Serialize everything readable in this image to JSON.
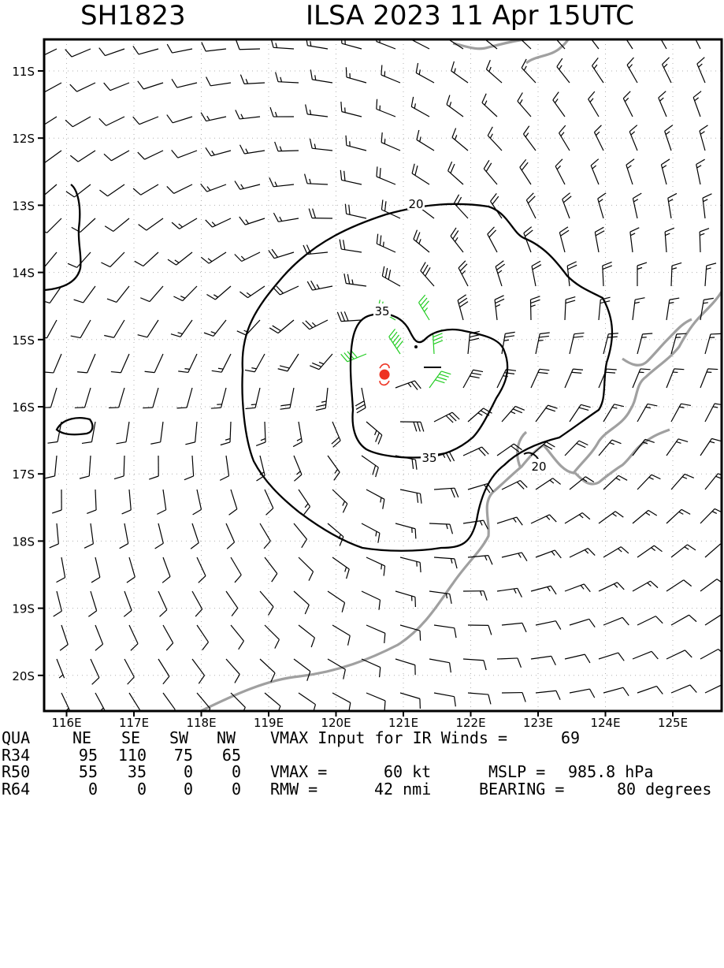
{
  "header": {
    "storm_id": "SH1823",
    "storm_title": "ILSA 2023 11 Apr 15UTC"
  },
  "map": {
    "lon_ticks": [
      "116E",
      "117E",
      "118E",
      "119E",
      "120E",
      "121E",
      "122E",
      "123E",
      "124E",
      "125E"
    ],
    "lat_ticks": [
      "11S",
      "12S",
      "13S",
      "14S",
      "15S",
      "16S",
      "17S",
      "18S",
      "19S",
      "20S"
    ],
    "contour_labels": [
      "20",
      "35",
      "35",
      "20"
    ],
    "center_lon": 120.72,
    "center_lat": -15.52,
    "colors": {
      "barb_default": "#000000",
      "barb_34kt": "#22cc22",
      "barb_50kt": "#e0a030",
      "coast": "#a0a0a0",
      "center": "#ee3322",
      "contour": "#000000"
    }
  },
  "table": {
    "headers": [
      "QUA",
      "NE",
      "SE",
      "SW",
      "NW"
    ],
    "rows": [
      [
        "R34",
        "95",
        "110",
        "75",
        "65"
      ],
      [
        "R50",
        "55",
        "35",
        "0",
        "0"
      ],
      [
        "R64",
        "0",
        "0",
        "0",
        "0"
      ]
    ]
  },
  "info": {
    "line1_label": "VMAX Input for IR Winds =",
    "line1_value": "69",
    "line2_vmax_label": "VMAX =",
    "line2_vmax_value": "60 kt",
    "line2_mslp_label": "MSLP =",
    "line2_mslp_value": "985.8 hPa",
    "line3_rmw_label": "RMW =",
    "line3_rmw_value": "42 nmi",
    "line3_bearing_label": "BEARING =",
    "line3_bearing_value": "80 degrees"
  }
}
